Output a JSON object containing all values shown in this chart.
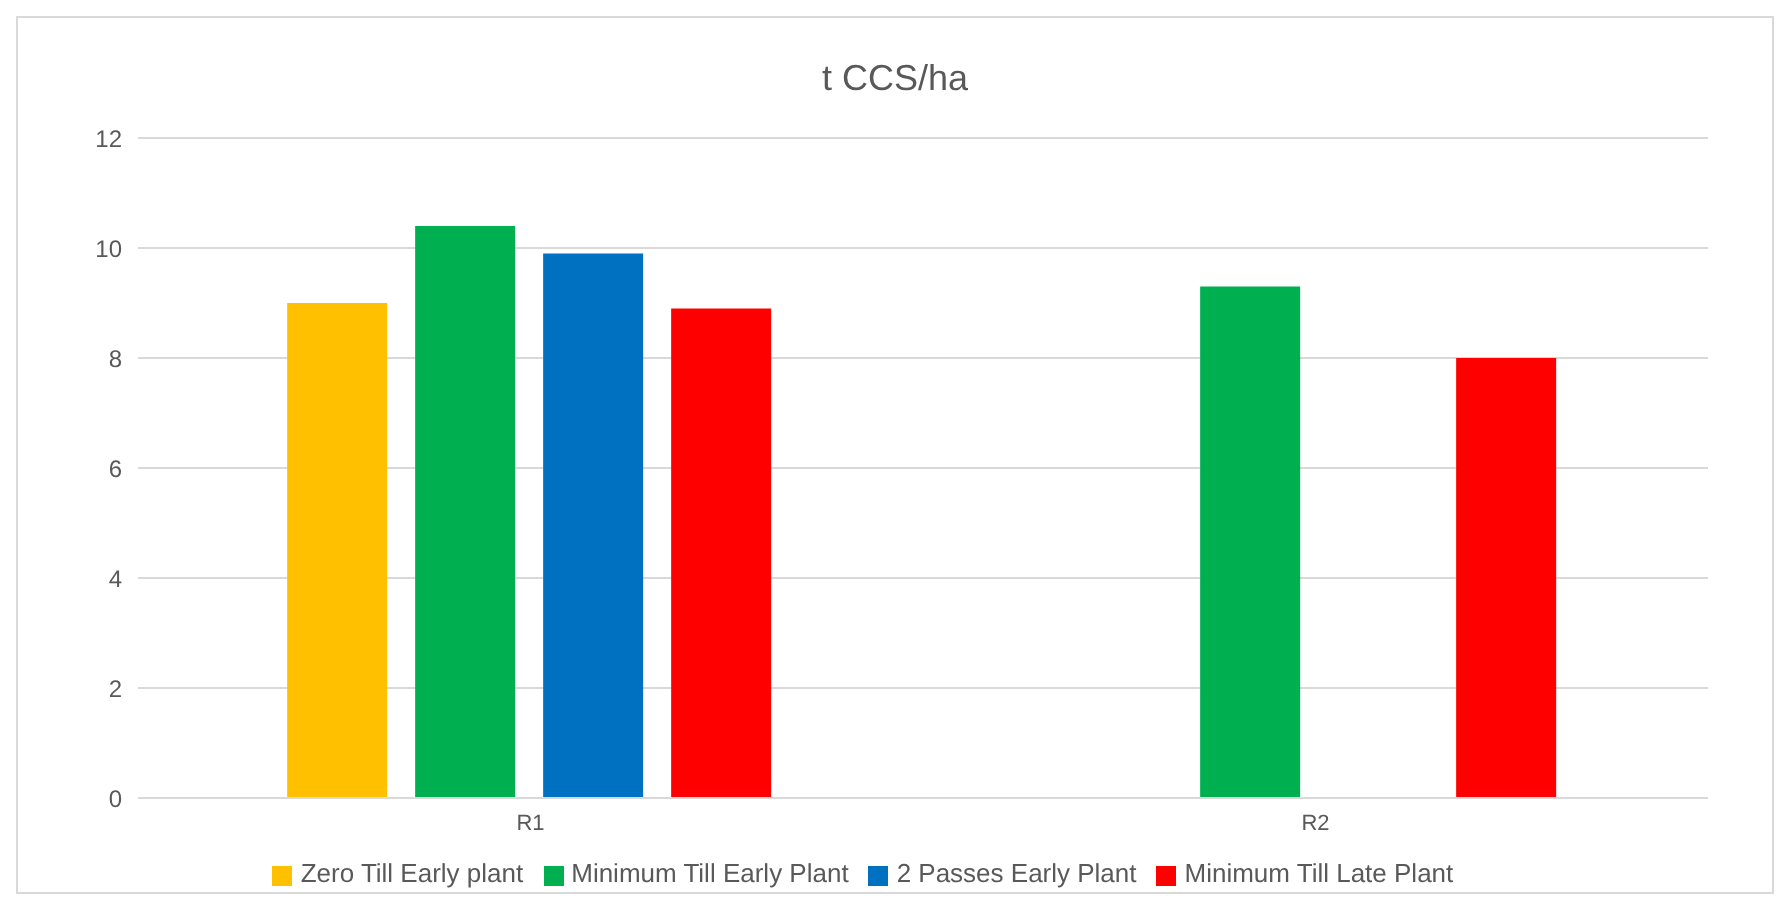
{
  "chart_data": {
    "type": "bar",
    "title": "t CCS/ha",
    "categories": [
      "R1",
      "R2"
    ],
    "series": [
      {
        "name": "Zero Till Early plant",
        "color": "#ffc000",
        "values": [
          9.0,
          null
        ]
      },
      {
        "name": "Minimum Till Early Plant",
        "color": "#00b050",
        "values": [
          10.4,
          9.3
        ]
      },
      {
        "name": "2 Passes Early Plant",
        "color": "#0070c0",
        "values": [
          9.9,
          null
        ]
      },
      {
        "name": "Minimum Till Late Plant",
        "color": "#ff0000",
        "values": [
          8.9,
          8.0
        ]
      }
    ],
    "ylim": [
      0,
      12
    ],
    "yticks": [
      0,
      2,
      4,
      6,
      8,
      10,
      12
    ],
    "grid": "y",
    "legend": "bottom"
  }
}
